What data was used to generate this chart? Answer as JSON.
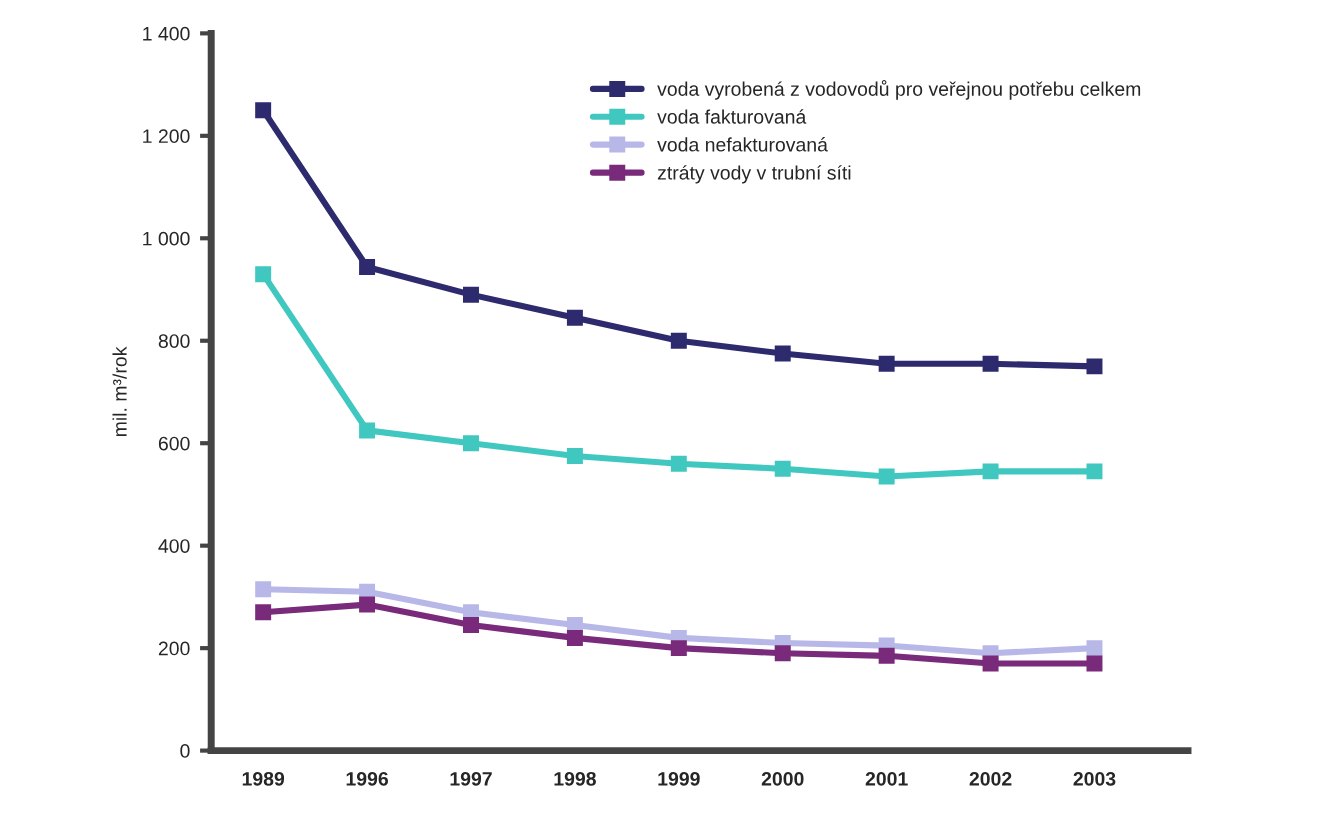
{
  "chart_data": {
    "type": "line",
    "ylabel": "mil. m³/rok",
    "categories": [
      "1989",
      "1996",
      "1997",
      "1998",
      "1999",
      "2000",
      "2001",
      "2002",
      "2003"
    ],
    "series": [
      {
        "name": "voda vyrobená z vodovodů pro veřejnou potřebu celkem",
        "color": "#2e2a6e",
        "values": [
          1250,
          944,
          890,
          845,
          800,
          775,
          755,
          755,
          750
        ]
      },
      {
        "name": "voda fakturovaná",
        "color": "#40c8c0",
        "values": [
          930,
          625,
          600,
          575,
          560,
          550,
          535,
          545,
          545
        ]
      },
      {
        "name": "voda nefakturovaná",
        "color": "#b8b8e8",
        "values": [
          315,
          310,
          270,
          245,
          220,
          210,
          205,
          190,
          200
        ]
      },
      {
        "name": "ztráty vody v trubní síti",
        "color": "#7a2a7a",
        "values": [
          270,
          285,
          245,
          220,
          200,
          190,
          185,
          170,
          170
        ]
      }
    ],
    "ylim": [
      0,
      1400
    ],
    "yticks": [
      0,
      {
        "value": 200,
        "label": "200"
      },
      {
        "value": 400,
        "label": "400"
      },
      {
        "value": 600,
        "label": "600"
      },
      {
        "value": 800,
        "label": "800"
      },
      {
        "value": 1000,
        "label": "1 000"
      },
      {
        "value": 1200,
        "label": "1 200"
      },
      {
        "value": 1400,
        "label": "1 400"
      }
    ],
    "legend": "top right",
    "grid": false,
    "marker": "square",
    "line_style": "solid"
  }
}
